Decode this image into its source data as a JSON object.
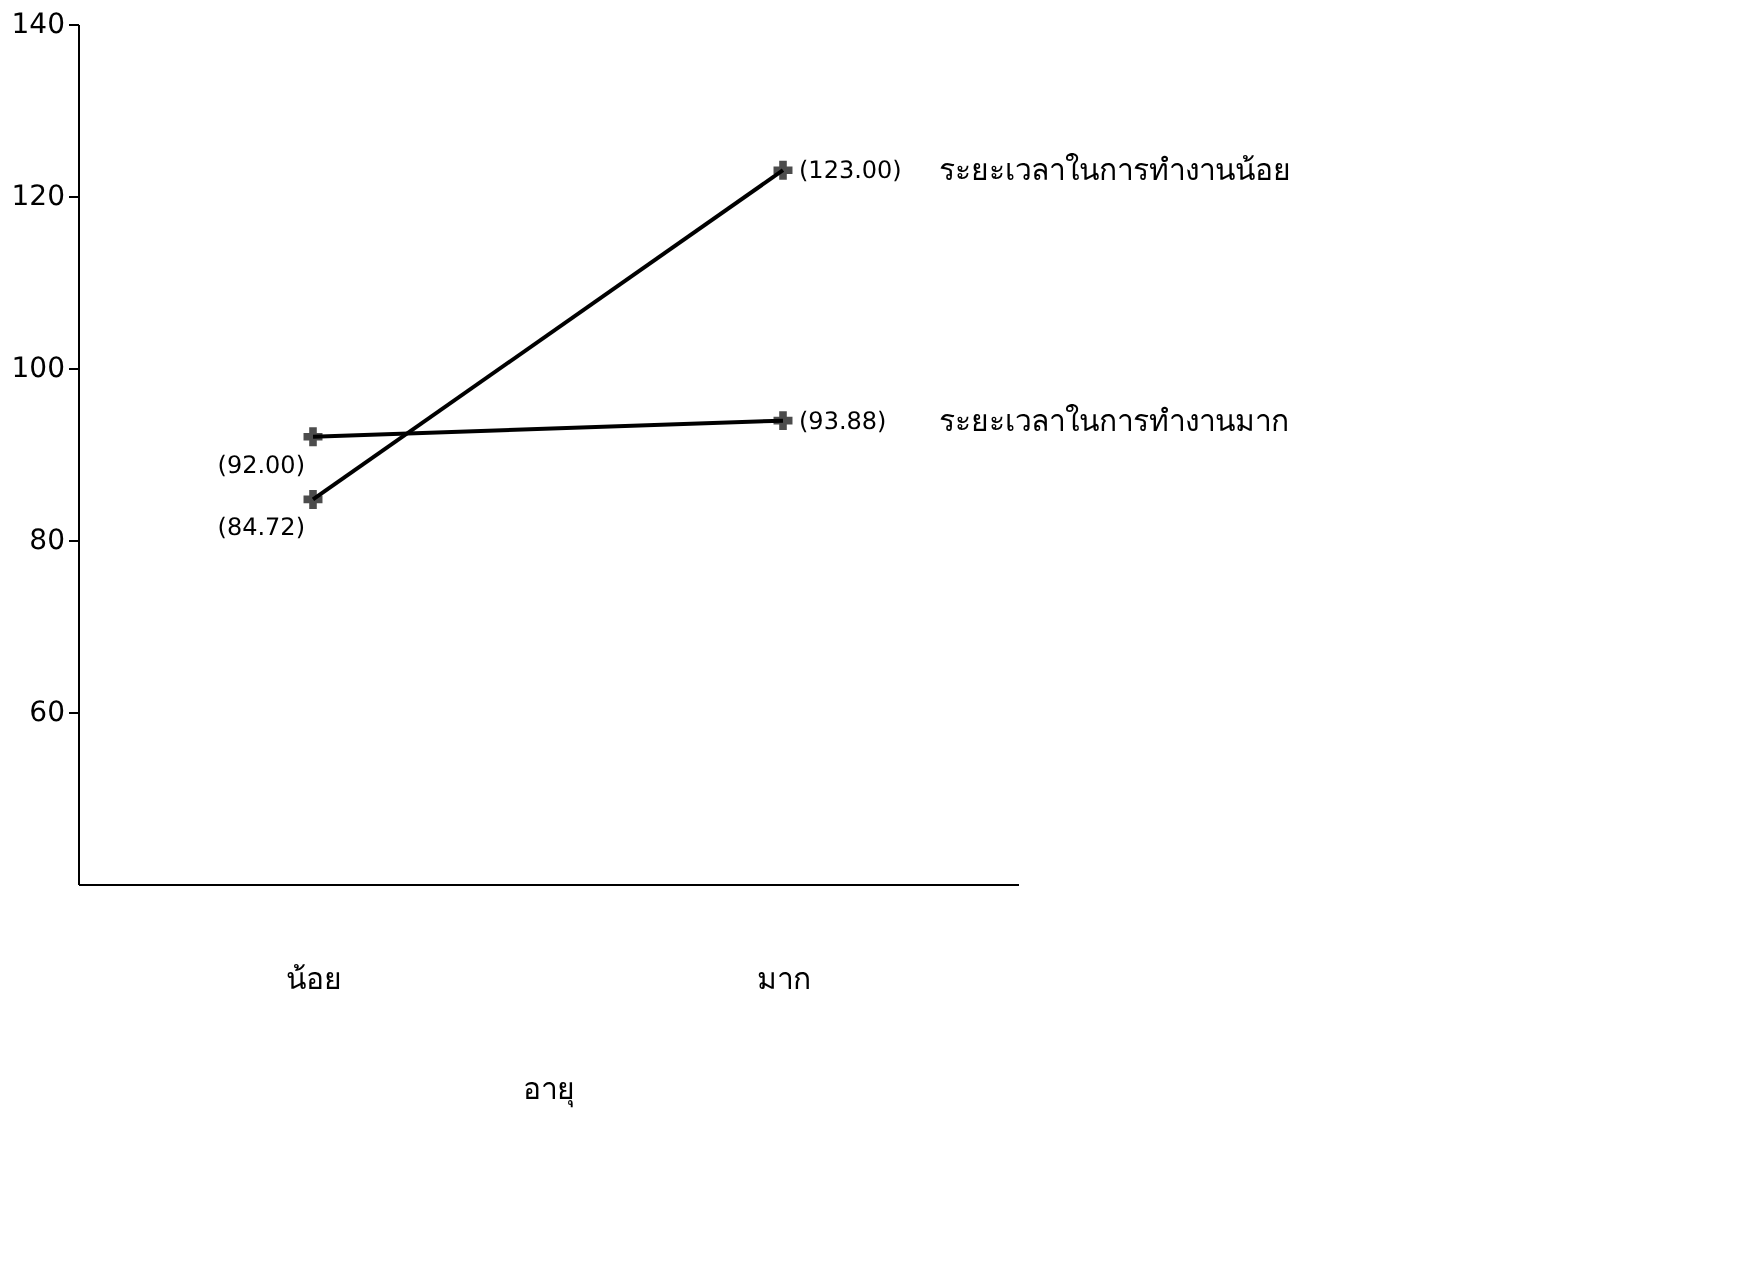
{
  "chart_data": {
    "type": "line",
    "xlabel": "อายุ",
    "categories": [
      "น้อย",
      "มาก"
    ],
    "series": [
      {
        "name": "ระยะเวลาในการทำงานน้อย",
        "color": "#000000",
        "values": [
          84.72,
          123.0
        ],
        "value_labels": [
          "(84.72)",
          "(123.00)"
        ]
      },
      {
        "name": "ระยะเวลาในการทำงานมาก",
        "color": "#000000",
        "values": [
          92.0,
          93.88
        ],
        "value_labels": [
          "(92.00)",
          "(93.88)"
        ]
      }
    ],
    "ylim": [
      40,
      140
    ],
    "yticks": [
      60,
      80,
      100,
      120,
      140
    ],
    "grid": false,
    "marker": "cross",
    "line_style": "solid"
  }
}
